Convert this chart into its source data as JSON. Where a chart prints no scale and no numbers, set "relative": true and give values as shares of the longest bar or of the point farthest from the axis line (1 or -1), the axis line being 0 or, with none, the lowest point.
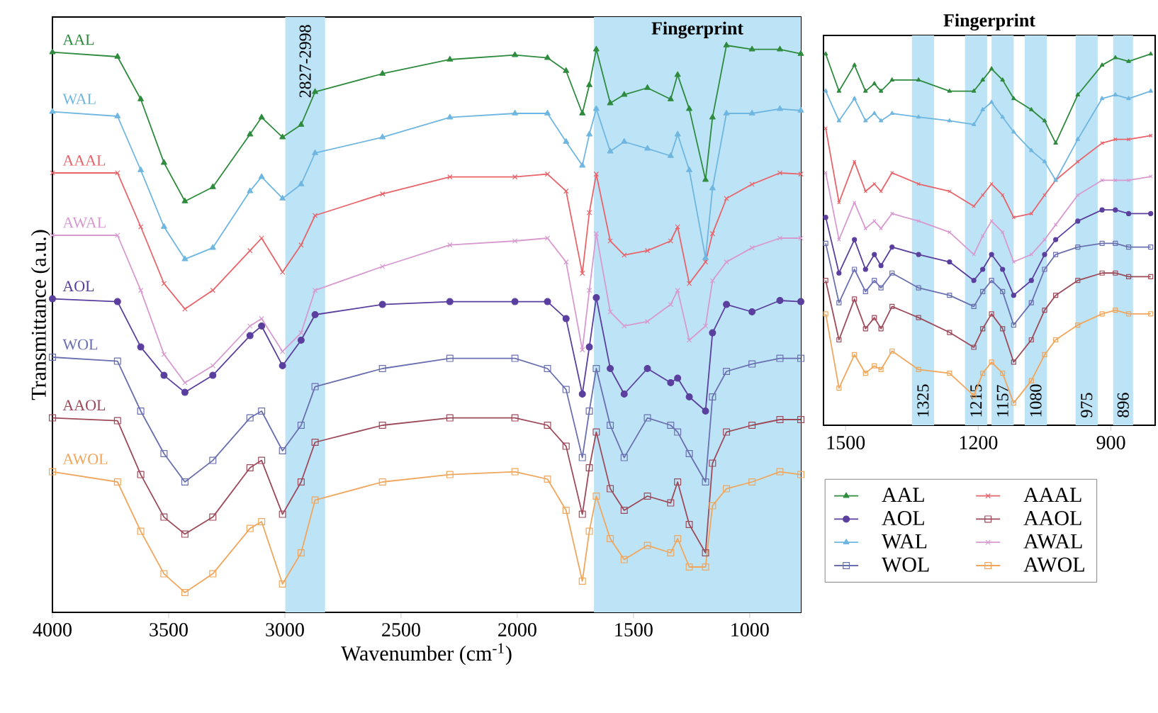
{
  "chart_data": [
    {
      "type": "line",
      "relative": true,
      "xlabel": "Wavenumber (cm$^{-1}$)",
      "ylabel": "Transmittance (a.u.)",
      "legend": "right",
      "line_style": "solid",
      "xlim": [
        4000,
        780
      ],
      "xticks": [
        4000,
        3500,
        3000,
        2500,
        2000,
        1500,
        1000
      ],
      "bands": [
        {
          "axis": "x",
          "from": 2998,
          "to": 2827,
          "label": "2827-2998",
          "color": "#bde3f6"
        },
        {
          "axis": "x",
          "from": 1670,
          "to": 780,
          "label": "Fingerprint",
          "color": "#bde3f6"
        }
      ],
      "x": [
        4000,
        3720,
        3620,
        3520,
        3430,
        3310,
        3150,
        3100,
        3010,
        2930,
        2870,
        2580,
        2290,
        2010,
        1870,
        1790,
        1720,
        1690,
        1660,
        1600,
        1540,
        1440,
        1340,
        1310,
        1260,
        1190,
        1160,
        1100,
        990,
        870,
        780
      ],
      "series": [
        {
          "name": "AAL",
          "color": "#2e8b3e",
          "marker": "triangle",
          "values": [
            0.988,
            0.98,
            0.905,
            0.793,
            0.725,
            0.75,
            0.843,
            0.873,
            0.838,
            0.86,
            0.918,
            0.95,
            0.975,
            0.983,
            0.978,
            0.955,
            0.88,
            0.93,
            0.993,
            0.898,
            0.913,
            0.925,
            0.905,
            0.948,
            0.888,
            0.763,
            0.873,
            1.0,
            0.993,
            0.993,
            0.985
          ]
        },
        {
          "name": "AAAL",
          "color": "#e8646a",
          "marker": "cross",
          "values": [
            0.775,
            0.775,
            0.68,
            0.58,
            0.535,
            0.568,
            0.638,
            0.66,
            0.6,
            0.648,
            0.7,
            0.738,
            0.768,
            0.768,
            0.773,
            0.743,
            0.598,
            0.705,
            0.773,
            0.655,
            0.63,
            0.638,
            0.655,
            0.68,
            0.58,
            0.618,
            0.668,
            0.73,
            0.755,
            0.775,
            0.773
          ]
        },
        {
          "name": "AOL",
          "color": "#5a3f9e",
          "marker": "circle",
          "values": [
            0.553,
            0.548,
            0.468,
            0.418,
            0.388,
            0.418,
            0.488,
            0.505,
            0.435,
            0.48,
            0.525,
            0.543,
            0.548,
            0.548,
            0.548,
            0.518,
            0.385,
            0.468,
            0.555,
            0.43,
            0.385,
            0.43,
            0.405,
            0.413,
            0.38,
            0.355,
            0.493,
            0.543,
            0.53,
            0.55,
            0.548
          ]
        },
        {
          "name": "AAOL",
          "color": "#9c4a5a",
          "marker": "square",
          "values": [
            0.343,
            0.338,
            0.243,
            0.168,
            0.138,
            0.168,
            0.255,
            0.268,
            0.173,
            0.23,
            0.3,
            0.33,
            0.343,
            0.343,
            0.33,
            0.293,
            0.173,
            0.255,
            0.318,
            0.218,
            0.18,
            0.205,
            0.193,
            0.23,
            0.155,
            0.105,
            0.263,
            0.318,
            0.33,
            0.34,
            0.34
          ]
        },
        {
          "name": "WAL",
          "color": "#6fb6e0",
          "marker": "triangle",
          "values": [
            0.883,
            0.875,
            0.78,
            0.68,
            0.623,
            0.643,
            0.743,
            0.768,
            0.73,
            0.755,
            0.81,
            0.838,
            0.873,
            0.88,
            0.88,
            0.83,
            0.788,
            0.843,
            0.888,
            0.813,
            0.83,
            0.818,
            0.805,
            0.843,
            0.78,
            0.625,
            0.748,
            0.88,
            0.88,
            0.888,
            0.885
          ]
        },
        {
          "name": "AWAL",
          "color": "#d79ad0",
          "marker": "cross",
          "values": [
            0.665,
            0.665,
            0.568,
            0.455,
            0.405,
            0.435,
            0.505,
            0.518,
            0.46,
            0.493,
            0.568,
            0.61,
            0.648,
            0.655,
            0.66,
            0.618,
            0.463,
            0.568,
            0.668,
            0.53,
            0.505,
            0.513,
            0.543,
            0.568,
            0.48,
            0.505,
            0.585,
            0.618,
            0.643,
            0.66,
            0.66
          ]
        },
        {
          "name": "WOL",
          "color": "#6a6fb0",
          "marker": "square",
          "values": [
            0.45,
            0.443,
            0.355,
            0.28,
            0.23,
            0.268,
            0.343,
            0.355,
            0.285,
            0.33,
            0.398,
            0.43,
            0.448,
            0.448,
            0.43,
            0.393,
            0.273,
            0.355,
            0.43,
            0.33,
            0.273,
            0.343,
            0.33,
            0.318,
            0.28,
            0.23,
            0.38,
            0.425,
            0.438,
            0.448,
            0.448
          ]
        },
        {
          "name": "AWOL",
          "color": "#f0a65c",
          "marker": "square",
          "values": [
            0.248,
            0.23,
            0.143,
            0.068,
            0.035,
            0.068,
            0.148,
            0.16,
            0.05,
            0.105,
            0.198,
            0.23,
            0.243,
            0.248,
            0.235,
            0.18,
            0.055,
            0.143,
            0.205,
            0.13,
            0.093,
            0.118,
            0.105,
            0.13,
            0.08,
            0.08,
            0.188,
            0.218,
            0.23,
            0.248,
            0.243
          ]
        }
      ]
    },
    {
      "type": "line",
      "relative": true,
      "title": "Fingerprint",
      "line_style": "solid",
      "xlim": [
        1550,
        800
      ],
      "xticks": [
        1500,
        1200,
        900
      ],
      "bands": [
        {
          "axis": "x",
          "from": 1350,
          "to": 1300,
          "label": "1325",
          "color": "#bde3f6"
        },
        {
          "axis": "x",
          "from": 1230,
          "to": 1180,
          "label": "1215",
          "color": "#bde3f6"
        },
        {
          "axis": "x",
          "from": 1170,
          "to": 1120,
          "label": "1157",
          "color": "#bde3f6"
        },
        {
          "axis": "x",
          "from": 1095,
          "to": 1045,
          "label": "1080",
          "color": "#bde3f6"
        },
        {
          "axis": "x",
          "from": 980,
          "to": 930,
          "label": "975",
          "color": "#bde3f6"
        },
        {
          "axis": "x",
          "from": 895,
          "to": 850,
          "label": "896",
          "color": "#bde3f6"
        }
      ],
      "x": [
        1545,
        1515,
        1480,
        1455,
        1435,
        1420,
        1395,
        1335,
        1265,
        1210,
        1190,
        1170,
        1145,
        1120,
        1080,
        1050,
        1025,
        975,
        920,
        890,
        860,
        810
      ],
      "series": [
        {
          "color": "#2e8b3e",
          "marker": "triangle",
          "values": [
            1.0,
            0.9,
            0.97,
            0.9,
            0.92,
            0.9,
            0.93,
            0.93,
            0.9,
            0.9,
            0.93,
            0.96,
            0.93,
            0.88,
            0.85,
            0.82,
            0.76,
            0.89,
            0.97,
            0.99,
            0.98,
            1.0
          ]
        },
        {
          "color": "#e8646a",
          "marker": "cross",
          "values": [
            0.8,
            0.6,
            0.71,
            0.63,
            0.65,
            0.63,
            0.68,
            0.65,
            0.63,
            0.59,
            0.62,
            0.65,
            0.62,
            0.56,
            0.57,
            0.62,
            0.66,
            0.71,
            0.76,
            0.77,
            0.77,
            0.78
          ]
        },
        {
          "color": "#5a3f9e",
          "marker": "circle",
          "values": [
            0.56,
            0.41,
            0.5,
            0.42,
            0.46,
            0.43,
            0.48,
            0.46,
            0.44,
            0.39,
            0.42,
            0.46,
            0.42,
            0.35,
            0.39,
            0.46,
            0.5,
            0.55,
            0.58,
            0.58,
            0.57,
            0.57
          ]
        },
        {
          "color": "#9c4a5a",
          "marker": "square",
          "values": [
            0.39,
            0.23,
            0.34,
            0.26,
            0.29,
            0.26,
            0.32,
            0.29,
            0.25,
            0.21,
            0.26,
            0.3,
            0.26,
            0.17,
            0.23,
            0.31,
            0.35,
            0.39,
            0.41,
            0.41,
            0.4,
            0.4
          ]
        },
        {
          "color": "#6fb6e0",
          "marker": "triangle",
          "values": [
            0.9,
            0.82,
            0.88,
            0.82,
            0.84,
            0.82,
            0.84,
            0.83,
            0.82,
            0.81,
            0.85,
            0.87,
            0.83,
            0.79,
            0.74,
            0.71,
            0.66,
            0.77,
            0.88,
            0.89,
            0.88,
            0.9
          ]
        },
        {
          "color": "#d79ad0",
          "marker": "cross",
          "values": [
            0.68,
            0.5,
            0.6,
            0.53,
            0.55,
            0.53,
            0.57,
            0.55,
            0.52,
            0.46,
            0.51,
            0.55,
            0.52,
            0.44,
            0.46,
            0.5,
            0.54,
            0.62,
            0.66,
            0.66,
            0.66,
            0.67
          ]
        },
        {
          "color": "#6a6fb0",
          "marker": "square",
          "values": [
            0.49,
            0.33,
            0.42,
            0.36,
            0.39,
            0.37,
            0.41,
            0.37,
            0.35,
            0.32,
            0.36,
            0.39,
            0.36,
            0.27,
            0.33,
            0.42,
            0.46,
            0.48,
            0.49,
            0.49,
            0.48,
            0.48
          ]
        },
        {
          "color": "#f0a65c",
          "marker": "square",
          "values": [
            0.3,
            0.1,
            0.19,
            0.14,
            0.16,
            0.15,
            0.2,
            0.15,
            0.14,
            0.08,
            0.14,
            0.17,
            0.14,
            0.06,
            0.12,
            0.19,
            0.23,
            0.27,
            0.3,
            0.31,
            0.3,
            0.3
          ]
        }
      ]
    }
  ]
}
